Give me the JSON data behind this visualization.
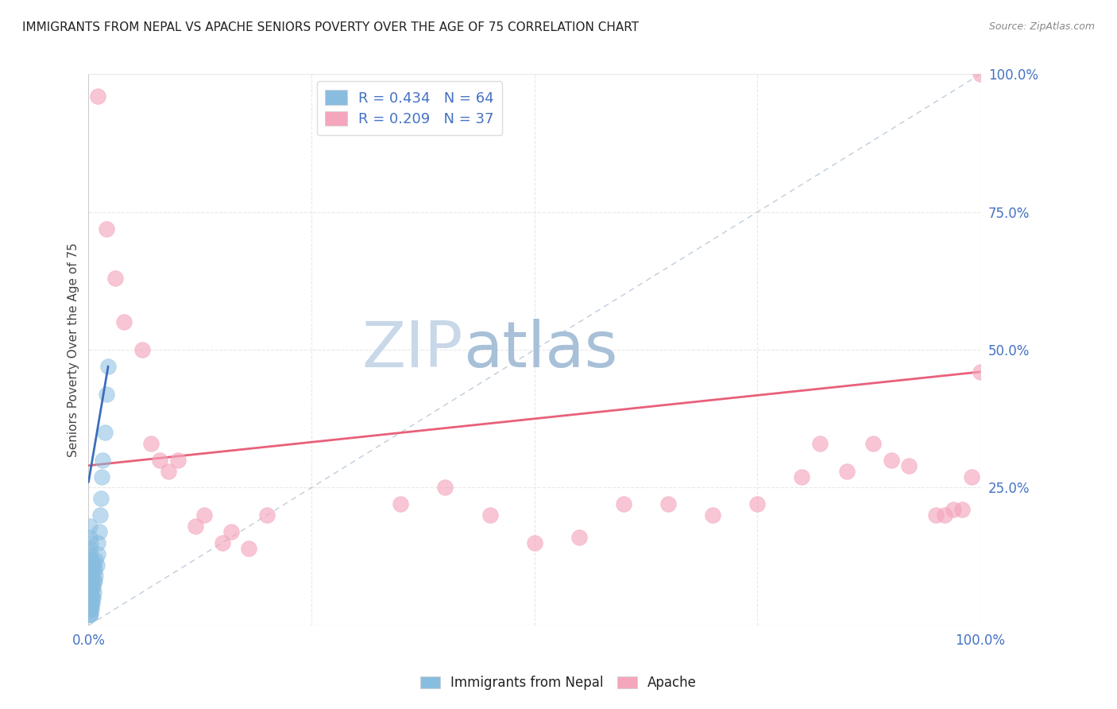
{
  "title": "IMMIGRANTS FROM NEPAL VS APACHE SENIORS POVERTY OVER THE AGE OF 75 CORRELATION CHART",
  "source": "Source: ZipAtlas.com",
  "ylabel": "Seniors Poverty Over the Age of 75",
  "xlim": [
    0,
    1
  ],
  "ylim": [
    0,
    1
  ],
  "xticks": [
    0,
    0.25,
    0.5,
    0.75,
    1.0
  ],
  "xticklabels": [
    "0.0%",
    "",
    "",
    "",
    "100.0%"
  ],
  "ytick_labels_right": [
    "100.0%",
    "75.0%",
    "50.0%",
    "25.0%"
  ],
  "ytick_positions_right": [
    1.0,
    0.75,
    0.5,
    0.25
  ],
  "blue_color": "#89bde0",
  "pink_color": "#f4a6bc",
  "blue_line_color": "#3a6fba",
  "pink_line_color": "#e8607a",
  "diagonal_color": "#b8c8d8",
  "watermark_zip_color": "#c8d8e8",
  "watermark_atlas_color": "#b0c8e0",
  "title_color": "#222222",
  "axis_label_color": "#444444",
  "tick_color": "#4472c4",
  "grid_color": "#e8e8e8",
  "nepal_x": [
    0.001,
    0.001,
    0.001,
    0.001,
    0.001,
    0.001,
    0.001,
    0.001,
    0.001,
    0.001,
    0.001,
    0.001,
    0.001,
    0.001,
    0.001,
    0.001,
    0.001,
    0.001,
    0.001,
    0.001,
    0.002,
    0.002,
    0.002,
    0.002,
    0.002,
    0.002,
    0.002,
    0.002,
    0.002,
    0.002,
    0.003,
    0.003,
    0.003,
    0.003,
    0.003,
    0.003,
    0.003,
    0.004,
    0.004,
    0.004,
    0.004,
    0.004,
    0.005,
    0.005,
    0.005,
    0.006,
    0.006,
    0.006,
    0.007,
    0.007,
    0.008,
    0.008,
    0.009,
    0.01,
    0.01,
    0.012,
    0.013,
    0.014,
    0.015,
    0.016,
    0.018,
    0.02,
    0.022
  ],
  "nepal_y": [
    0.02,
    0.02,
    0.03,
    0.03,
    0.04,
    0.04,
    0.05,
    0.05,
    0.06,
    0.07,
    0.08,
    0.08,
    0.09,
    0.1,
    0.11,
    0.12,
    0.13,
    0.14,
    0.16,
    0.18,
    0.02,
    0.03,
    0.04,
    0.05,
    0.06,
    0.07,
    0.08,
    0.1,
    0.12,
    0.15,
    0.03,
    0.04,
    0.05,
    0.06,
    0.08,
    0.1,
    0.12,
    0.04,
    0.05,
    0.07,
    0.09,
    0.11,
    0.05,
    0.07,
    0.1,
    0.06,
    0.08,
    0.11,
    0.08,
    0.1,
    0.09,
    0.12,
    0.11,
    0.13,
    0.15,
    0.17,
    0.2,
    0.23,
    0.27,
    0.3,
    0.35,
    0.42,
    0.47
  ],
  "apache_x": [
    0.01,
    0.02,
    0.03,
    0.04,
    0.06,
    0.07,
    0.08,
    0.09,
    0.1,
    0.12,
    0.13,
    0.15,
    0.16,
    0.18,
    0.2,
    0.35,
    0.4,
    0.45,
    0.5,
    0.55,
    0.6,
    0.65,
    0.7,
    0.75,
    0.8,
    0.82,
    0.85,
    0.88,
    0.9,
    0.92,
    0.95,
    0.96,
    0.97,
    0.98,
    0.99,
    1.0,
    1.0
  ],
  "apache_y": [
    0.96,
    0.72,
    0.63,
    0.55,
    0.5,
    0.33,
    0.3,
    0.28,
    0.3,
    0.18,
    0.2,
    0.15,
    0.17,
    0.14,
    0.2,
    0.22,
    0.25,
    0.2,
    0.15,
    0.16,
    0.22,
    0.22,
    0.2,
    0.22,
    0.27,
    0.33,
    0.28,
    0.33,
    0.3,
    0.29,
    0.2,
    0.2,
    0.21,
    0.21,
    0.27,
    0.46,
    1.0
  ],
  "nepal_line_x": [
    0.0,
    0.022
  ],
  "nepal_line_y": [
    0.26,
    0.47
  ],
  "apache_line_x": [
    0.0,
    1.0
  ],
  "apache_line_y": [
    0.29,
    0.46
  ]
}
